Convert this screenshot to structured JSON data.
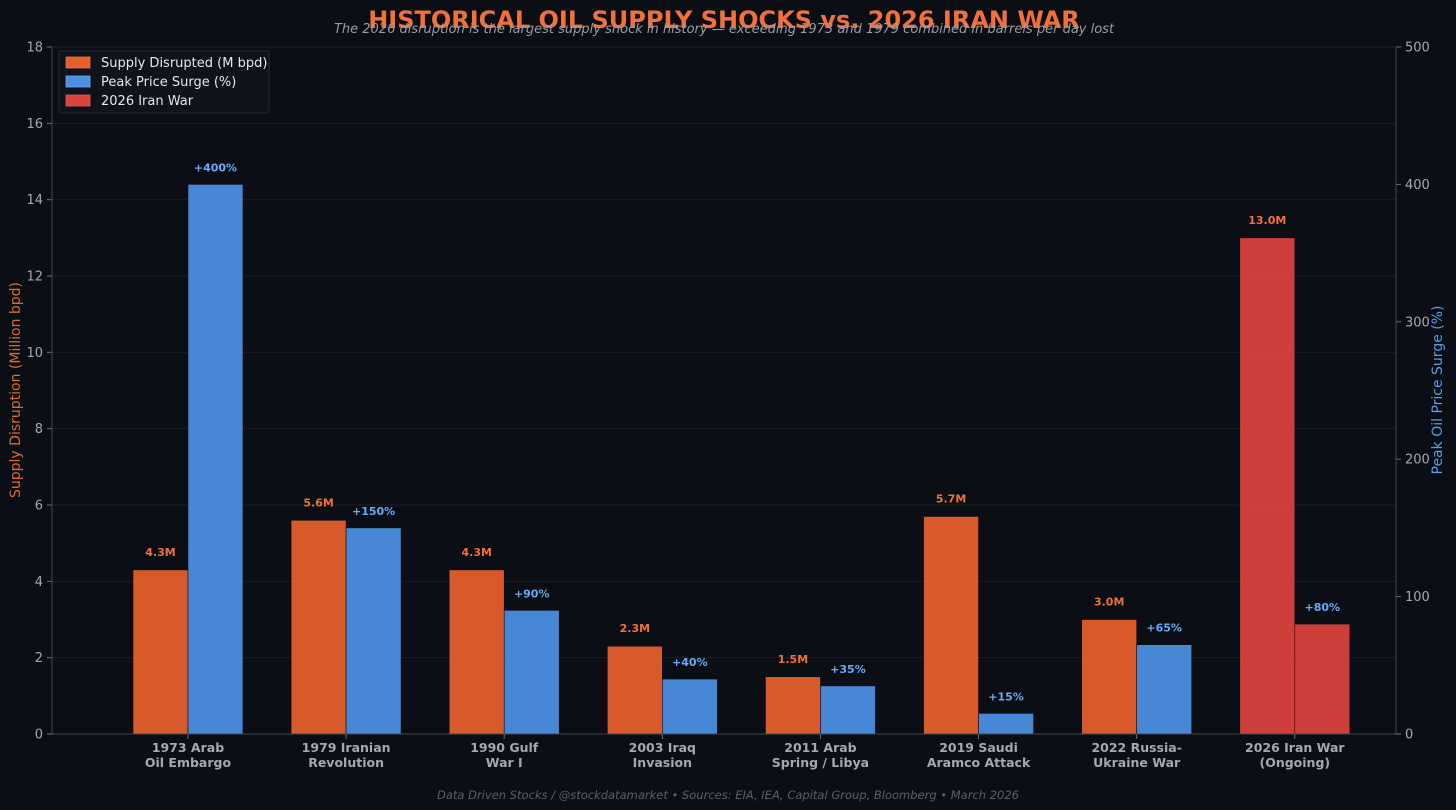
{
  "chart_data": {
    "type": "bar",
    "title": "HISTORICAL OIL SUPPLY SHOCKS vs. 2026 IRAN WAR",
    "subtitle": "The 2026 disruption is the largest supply shock in history — exceeding 1973 and 1979 combined in barrels per day lost",
    "ylabel": "Supply Disruption (Million bpd)",
    "ylabel_right": "Peak Oil Price Surge (%)",
    "ylim": [
      0,
      18
    ],
    "ylim_right": [
      0,
      500
    ],
    "yticks": [
      "0",
      "2",
      "4",
      "6",
      "8",
      "10",
      "12",
      "14",
      "16",
      "18"
    ],
    "yticks_right": [
      "0",
      "100",
      "200",
      "300",
      "400",
      "500"
    ],
    "grid": true,
    "legend_position": "top-left",
    "categories": [
      [
        "1973 Arab",
        "Oil Embargo"
      ],
      [
        "1979 Iranian",
        "Revolution"
      ],
      [
        "1990 Gulf",
        "War I"
      ],
      [
        "2003 Iraq",
        "Invasion"
      ],
      [
        "2011 Arab",
        "Spring / Libya"
      ],
      [
        "2019 Saudi",
        "Aramco Attack"
      ],
      [
        "2022 Russia-",
        "Ukraine War"
      ],
      [
        "2026 Iran War",
        "(Ongoing)"
      ]
    ],
    "series": [
      {
        "name": "Supply Disrupted (M bpd)",
        "axis": "left",
        "color": "#e35f2c",
        "values": [
          4.3,
          5.6,
          4.3,
          2.3,
          1.5,
          5.7,
          3.0,
          13.0
        ],
        "labels": [
          "4.3M",
          "5.6M",
          "4.3M",
          "2.3M",
          "1.5M",
          "5.7M",
          "3.0M",
          "13.0M"
        ]
      },
      {
        "name": "Peak Price Surge (%)",
        "axis": "right",
        "color": "#4a8fe0",
        "values": [
          400,
          150,
          90,
          40,
          35,
          15,
          65,
          80
        ],
        "labels": [
          "+400%",
          "+150%",
          "+90%",
          "+40%",
          "+35%",
          "+15%",
          "+65%",
          "+80%"
        ]
      }
    ],
    "highlight": {
      "name": "2026 Iran War",
      "category_index": 7,
      "color": "#d9423e"
    },
    "footer": "Data Driven Stocks / @stockdatamarket  •  Sources: EIA, IEA, Capital Group, Bloomberg  •  March 2026"
  },
  "colors": {
    "background": "#0b0e15",
    "title": "#f2703a",
    "supply": "#e35f2c",
    "supply_label": "#f2703a",
    "price": "#4a8fe0",
    "price_label": "#6aaaf5",
    "highlight": "#d9423e",
    "axis_text": "#a6a8ae",
    "ylabel_left": "#e0683a",
    "ylabel_right": "#5b9ae6",
    "grid": "#1a1d25",
    "subtitle": "#9a9ca3",
    "footer": "#5c5f68"
  }
}
